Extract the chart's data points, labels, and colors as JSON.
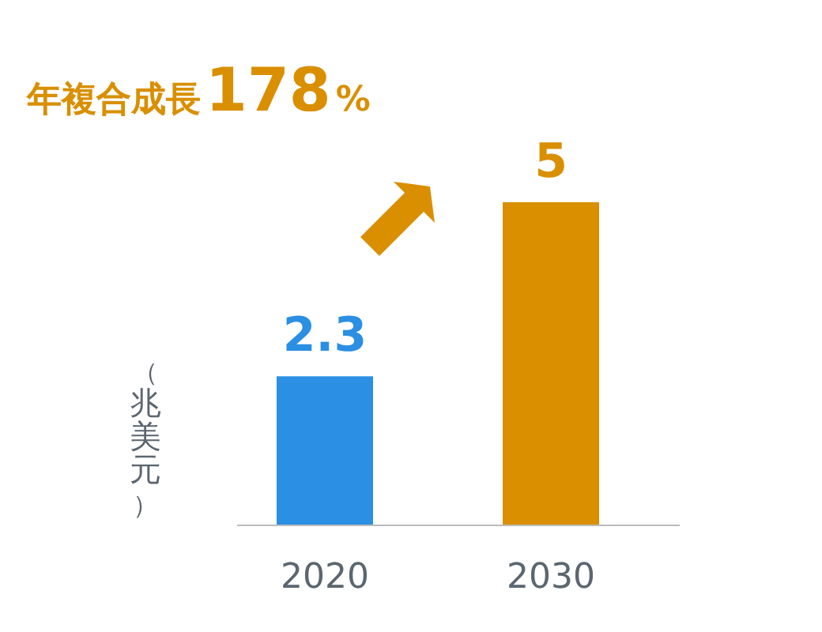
{
  "chart_data": {
    "type": "bar",
    "ylabel": "（兆美元）",
    "annotations": [
      "年複合成長178%"
    ],
    "categories": [
      "2020",
      "2030"
    ],
    "values": [
      2.3,
      5
    ],
    "colors": [
      "#2b8fe3",
      "#d98f00"
    ],
    "data_labels": true
  }
}
